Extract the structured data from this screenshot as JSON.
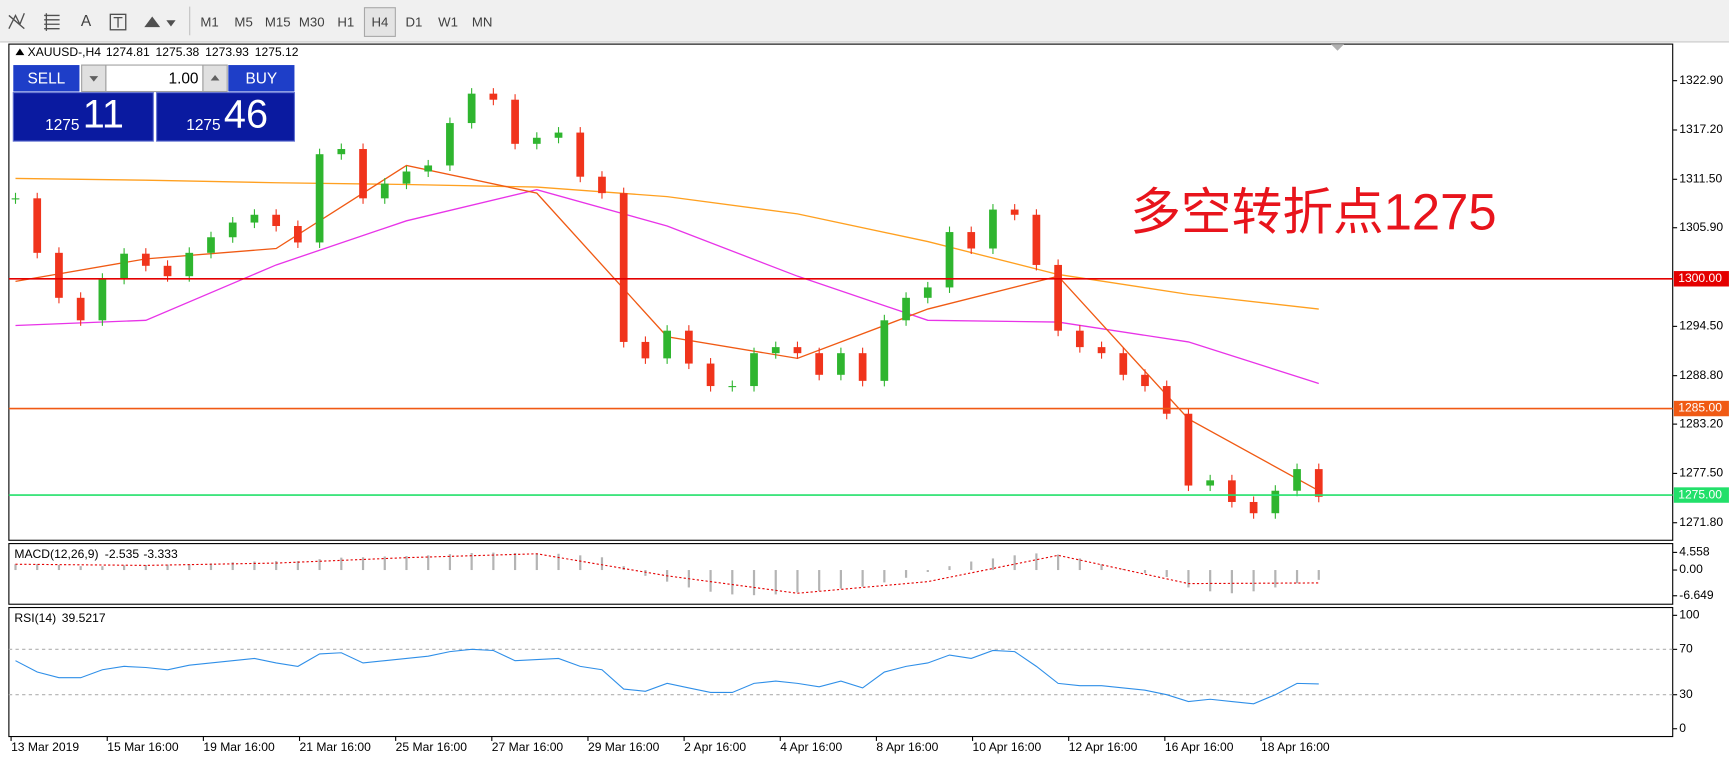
{
  "toolbar": {
    "tools": [
      "A"
    ],
    "periods": [
      "M1",
      "M5",
      "M15",
      "M30",
      "H1",
      "H4",
      "D1",
      "W1",
      "MN"
    ],
    "active_period": 5
  },
  "header": {
    "symbol": "XAUUSD-,H4",
    "ohlc": [
      1274.81,
      1275.38,
      1273.93,
      1275.12
    ]
  },
  "trade_panel": {
    "sell": "SELL",
    "buy": "BUY",
    "lot": "1.00",
    "sell_big": "1275",
    "sell_pips": "11",
    "buy_big": "1275",
    "buy_pips": "46"
  },
  "chart_data": {
    "type": "candlestick",
    "annotation": "多空转折点1275",
    "close": [
      1309.3,
      1303,
      1297.8,
      1295.2,
      1300,
      1302.9,
      1301.5,
      1300.3,
      1303,
      1304.8,
      1306.5,
      1307.4,
      1306.1,
      1304.2,
      1314.4,
      1315,
      1309.3,
      1311,
      1312.4,
      1313.1,
      1318,
      1321.4,
      1320.7,
      1315.6,
      1316.3,
      1316.9,
      1311.8,
      1309.9,
      1292.7,
      1290.8,
      1294,
      1290.2,
      1287.6,
      1287.6,
      1291.4,
      1292.1,
      1291.4,
      1288.9,
      1291.4,
      1288.2,
      1295.2,
      1297.8,
      1299,
      1305.4,
      1303.5,
      1308,
      1307.4,
      1301.6,
      1294,
      1292.1,
      1291.4,
      1288.9,
      1287.6,
      1284.4,
      1276.1,
      1276.7,
      1274.2,
      1272.9,
      1275.5,
      1278,
      1274.8
    ],
    "up_color": "#2fb52f",
    "down_color": "#f0341c",
    "ylim": [
      1269.9,
      1327.0
    ],
    "yticks": [
      {
        "value": 1322.9,
        "label": "1322.90"
      },
      {
        "value": 1317.2,
        "label": "1317.20"
      },
      {
        "value": 1311.5,
        "label": "1311.50"
      },
      {
        "value": 1305.9,
        "label": "1305.90"
      },
      {
        "value": 1294.5,
        "label": "1294.50"
      },
      {
        "value": 1288.8,
        "label": "1288.80"
      },
      {
        "value": 1283.2,
        "label": "1283.20"
      },
      {
        "value": 1277.5,
        "label": "1277.50"
      },
      {
        "value": 1271.8,
        "label": "1271.80"
      }
    ],
    "levels": [
      {
        "value": 1300,
        "label": "1300.00",
        "color": "#e40000"
      },
      {
        "value": 1285,
        "label": "1285.00",
        "color": "#f05a14"
      },
      {
        "value": 1275,
        "label": "1275.00",
        "color": "#22e06a"
      }
    ],
    "ma": [
      {
        "color": "#ffa020",
        "values": [
          1311.6,
          1311.4,
          1311.1,
          1310.9,
          1310.6,
          1309.5,
          1307.5,
          1304.3,
          1300.5,
          1298.2,
          1296.5
        ]
      },
      {
        "color": "#e834e8",
        "values": [
          1294.6,
          1295.2,
          1301.6,
          1306.7,
          1310.3,
          1306.1,
          1300.3,
          1295.2,
          1295,
          1292.7,
          1287.9
        ]
      },
      {
        "color": "#f05a14",
        "values": [
          1299.7,
          1302.3,
          1303.5,
          1313.1,
          1309.9,
          1293.3,
          1290.8,
          1296.5,
          1300.3,
          1283.8,
          1275.5
        ]
      }
    ],
    "xlabels": [
      "13 Mar 2019",
      "15 Mar 16:00",
      "19 Mar 16:00",
      "21 Mar 16:00",
      "25 Mar 16:00",
      "27 Mar 16:00",
      "29 Mar 16:00",
      "2 Apr 16:00",
      "4 Apr 16:00",
      "8 Apr 16:00",
      "10 Apr 16:00",
      "12 Apr 16:00",
      "16 Apr 16:00",
      "18 Apr 16:00"
    ],
    "macd": {
      "label": "MACD(12,26,9)",
      "main_value": -2.535,
      "signal_value": -3.333,
      "values": [
        1.5,
        1.5,
        1.3,
        1.0,
        1.0,
        1.2,
        1.3,
        1.4,
        1.5,
        1.7,
        2.0,
        2.2,
        2.3,
        2.3,
        2.8,
        3.2,
        3.3,
        3.5,
        3.6,
        3.8,
        4.1,
        4.4,
        4.5,
        4.4,
        4.3,
        4.2,
        3.8,
        3.3,
        1.0,
        -1.5,
        -3.0,
        -4.5,
        -5.6,
        -6.3,
        -6.5,
        -6.3,
        -5.8,
        -5.4,
        -4.8,
        -4.3,
        -3.2,
        -2.0,
        -0.5,
        1.0,
        2.2,
        3.0,
        3.8,
        4.3,
        4.0,
        3.0,
        1.5,
        0.3,
        -0.8,
        -1.8,
        -4.5,
        -5.5,
        -6.0,
        -5.5,
        -4.5,
        -3.4,
        -2.535
      ],
      "signal": [
        1.5,
        1.2,
        1.8,
        3.2,
        4.2,
        -1.5,
        -6.0,
        -3.0,
        3.8,
        -3.5,
        -3.333
      ],
      "color": "#b4b4b4",
      "signal_color": "#e40000",
      "ylim": [
        -8.55,
        6.55
      ],
      "yticks": [
        4.558,
        {
          "value": 0,
          "label": "0.00"
        },
        -6.649
      ]
    },
    "rsi": {
      "label": "RSI(14)",
      "value": 39.5217,
      "values": [
        60,
        50,
        45,
        45,
        52,
        55,
        54,
        52,
        56,
        58,
        60,
        62,
        58,
        55,
        66,
        67,
        58,
        60,
        62,
        64,
        68,
        70,
        69,
        60,
        61,
        62,
        55,
        52,
        35,
        33,
        40,
        36,
        32,
        32,
        40,
        42,
        40,
        37,
        42,
        36,
        50,
        55,
        58,
        65,
        62,
        69,
        68,
        55,
        40,
        38,
        38,
        36,
        34,
        30,
        24,
        26,
        24,
        22,
        30,
        40,
        39.5217
      ],
      "color": "#2f8fe8",
      "ylim": [
        -5.9,
        105.9
      ],
      "yticks": [
        100,
        70,
        30,
        0
      ],
      "levels": [
        70,
        30
      ]
    }
  }
}
